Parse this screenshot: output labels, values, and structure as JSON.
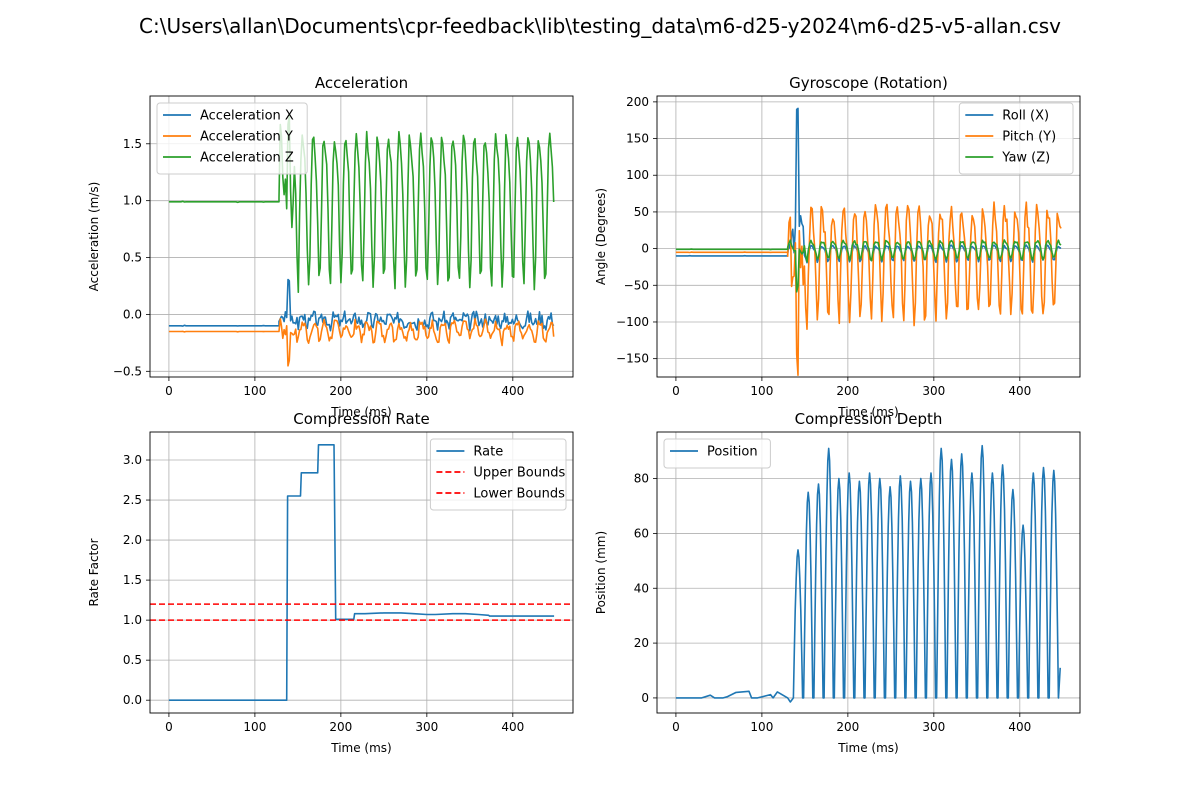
{
  "figure_title": "C:\\Users\\allan\\Documents\\cpr-feedback\\lib\\testing_data\\m6-d25-y2024\\m6-d25-v5-allan.csv",
  "colors": {
    "blue": "#1f77b4",
    "orange": "#ff7f0e",
    "green": "#2ca02c",
    "red": "#ff0000",
    "grid": "#b0b0b0"
  },
  "chart_data": [
    {
      "id": "accel",
      "type": "line",
      "title": "Acceleration",
      "xlabel": "Time (ms)",
      "ylabel": "Acceleration (m/s)",
      "xlim": [
        -22,
        470
      ],
      "ylim": [
        -0.55,
        1.92
      ],
      "xticks": [
        0,
        100,
        200,
        300,
        400
      ],
      "yticks": [
        -0.5,
        0.0,
        0.5,
        1.0,
        1.5
      ],
      "ytick_labels": [
        "−0.5",
        "0.0",
        "0.5",
        "1.0",
        "1.5"
      ],
      "grid": true,
      "legend_position": "upper-left",
      "series": [
        {
          "name": "Acceleration X",
          "color": "#1f77b4",
          "baseline": -0.1,
          "start": 128,
          "end": 448,
          "amp_noise": 0.06,
          "mid": -0.05,
          "spike": 0.3,
          "osc_amp": 0.03,
          "osc_period": 12.5,
          "seed": 3
        },
        {
          "name": "Acceleration Y",
          "color": "#ff7f0e",
          "baseline": -0.15,
          "start": 128,
          "end": 448,
          "amp_noise": 0.05,
          "mid": -0.14,
          "spike": -0.43,
          "osc_amp": 0.07,
          "osc_period": 12.5,
          "seed": 7
        },
        {
          "name": "Acceleration Z",
          "color": "#2ca02c",
          "baseline": 0.99,
          "start": 128,
          "end": 448,
          "amp_noise": 0.05,
          "mid": 1.02,
          "spike": 1.7,
          "osc_amp": 0.62,
          "osc_period": 12.5,
          "seed": 11
        }
      ]
    },
    {
      "id": "gyro",
      "type": "line",
      "title": "Gyroscope (Rotation)",
      "xlabel": "Time (ms)",
      "ylabel": "Angle (Degrees)",
      "xlim": [
        -22,
        470
      ],
      "ylim": [
        -175,
        208
      ],
      "xticks": [
        0,
        100,
        200,
        300,
        400
      ],
      "yticks": [
        -150,
        -100,
        -50,
        0,
        50,
        100,
        150,
        200
      ],
      "ytick_labels": [
        "−150",
        "−100",
        "−50",
        "0",
        "50",
        "100",
        "150",
        "200"
      ],
      "grid": true,
      "legend_position": "upper-right",
      "series": [
        {
          "name": "Roll (X)",
          "color": "#1f77b4",
          "baseline": -10,
          "start": 130,
          "end": 448,
          "mid": -5,
          "spike": 190,
          "osc_amp": 10,
          "osc_period": 12.5,
          "seed": 5
        },
        {
          "name": "Pitch (Y)",
          "color": "#ff7f0e",
          "baseline": -5,
          "start": 130,
          "end": 448,
          "mid": -8,
          "spike": -160,
          "osc_amp": 70,
          "osc_period": 12.5,
          "seed": 9
        },
        {
          "name": "Yaw (Z)",
          "color": "#2ca02c",
          "baseline": -1,
          "start": 130,
          "end": 448,
          "mid": 0,
          "spike": -55,
          "osc_amp": 12,
          "osc_period": 12.5,
          "seed": 13
        }
      ]
    },
    {
      "id": "rate",
      "type": "line",
      "title": "Compression Rate",
      "xlabel": "Time (ms)",
      "ylabel": "Rate Factor",
      "xlim": [
        -22,
        470
      ],
      "ylim": [
        -0.16,
        3.35
      ],
      "xticks": [
        0,
        100,
        200,
        300,
        400
      ],
      "yticks": [
        0.0,
        0.5,
        1.0,
        1.5,
        2.0,
        2.5,
        3.0
      ],
      "ytick_labels": [
        "0.0",
        "0.5",
        "1.0",
        "1.5",
        "2.0",
        "2.5",
        "3.0"
      ],
      "grid": true,
      "legend_position": "upper-right",
      "series": [
        {
          "name": "Rate",
          "color": "#1f77b4",
          "x": [
            0,
            137,
            138,
            153,
            154,
            173,
            174,
            192,
            194,
            215,
            216,
            228,
            250,
            270,
            285,
            300,
            310,
            330,
            345,
            360,
            372,
            373,
            448
          ],
          "y": [
            0,
            0,
            2.55,
            2.55,
            2.84,
            2.84,
            3.19,
            3.19,
            1.01,
            1.01,
            1.08,
            1.08,
            1.09,
            1.09,
            1.08,
            1.07,
            1.07,
            1.08,
            1.08,
            1.07,
            1.06,
            1.05,
            1.05
          ]
        }
      ],
      "hlines": [
        {
          "name": "Upper Bounds",
          "y": 1.2,
          "color": "#ff0000",
          "style": "dashed"
        },
        {
          "name": "Lower Bounds",
          "y": 1.0,
          "color": "#ff0000",
          "style": "dashed"
        }
      ]
    },
    {
      "id": "depth",
      "type": "line",
      "title": "Compression Depth",
      "xlabel": "Time (ms)",
      "ylabel": "Position (mm)",
      "xlim": [
        -22,
        470
      ],
      "ylim": [
        -5.5,
        97
      ],
      "xticks": [
        0,
        100,
        200,
        300,
        400
      ],
      "yticks": [
        0,
        20,
        40,
        60,
        80
      ],
      "ytick_labels": [
        "0",
        "20",
        "40",
        "60",
        "80"
      ],
      "grid": true,
      "legend_position": "upper-left",
      "series": [
        {
          "name": "Position",
          "color": "#1f77b4",
          "pre_x": [
            0,
            30,
            40,
            45,
            55,
            60,
            70,
            85,
            88,
            95,
            110,
            113,
            118,
            130,
            133
          ],
          "pre_y": [
            0,
            0,
            1,
            0,
            0,
            0.5,
            2,
            2.4,
            0,
            0,
            1.2,
            0,
            2.2,
            0,
            -1.5
          ],
          "peaks": [
            54,
            75,
            78,
            91,
            80,
            82,
            79,
            82,
            80,
            77,
            81,
            79,
            80,
            82,
            91,
            87,
            89,
            82,
            92,
            82,
            85,
            76,
            63,
            82,
            84,
            83
          ],
          "peak_start": 142,
          "period": 11.9,
          "end_x": 447,
          "end_y": 11
        }
      ]
    }
  ]
}
